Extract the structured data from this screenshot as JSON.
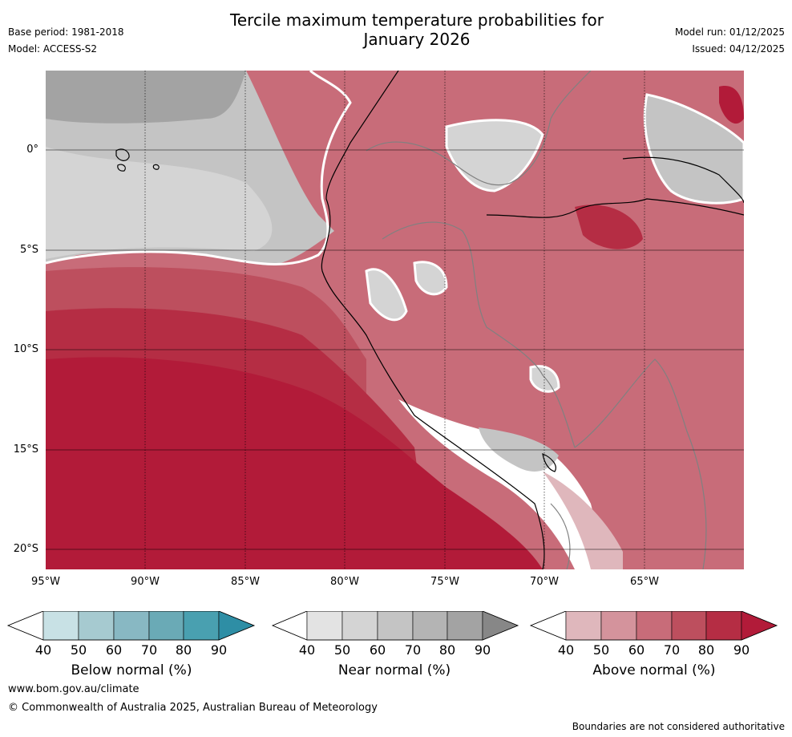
{
  "title": {
    "line1": "Tercile maximum temperature probabilities for",
    "line2": "January 2026"
  },
  "meta_left": {
    "base_period": "Base period: 1981-2018",
    "model": "Model: ACCESS-S2"
  },
  "meta_right": {
    "model_run": "Model run: 01/12/2025",
    "issued": "Issued: 04/12/2025"
  },
  "map": {
    "lat_ticks": [
      "0°",
      "5°S",
      "10°S",
      "15°S",
      "20°S"
    ],
    "lon_ticks": [
      "95°W",
      "90°W",
      "85°W",
      "80°W",
      "75°W",
      "70°W",
      "65°W"
    ]
  },
  "colorbars": [
    {
      "label": "Below normal (%)",
      "ticks": [
        "40",
        "50",
        "60",
        "70",
        "80",
        "90"
      ],
      "colors": [
        "#ffffff",
        "#c8e1e5",
        "#a6cad0",
        "#88b8c3",
        "#6aaab6",
        "#49a0b0",
        "#2e8ea5"
      ]
    },
    {
      "label": "Near normal (%)",
      "ticks": [
        "40",
        "50",
        "60",
        "70",
        "80",
        "90"
      ],
      "colors": [
        "#ffffff",
        "#e3e3e3",
        "#d4d4d4",
        "#c4c4c4",
        "#b4b4b4",
        "#a3a3a3",
        "#878787"
      ]
    },
    {
      "label": "Above normal (%)",
      "ticks": [
        "40",
        "50",
        "60",
        "70",
        "80",
        "90"
      ],
      "colors": [
        "#ffffff",
        "#dfb7bc",
        "#d4939c",
        "#c86c79",
        "#bd4f5e",
        "#b52d44",
        "#b21b39"
      ]
    }
  ],
  "footer": {
    "website": "www.bom.gov.au/climate",
    "copyright": "© Commonwealth of Australia 2025, Australian Bureau of Meteorology",
    "disclaimer": "Boundaries are not considered authoritative"
  }
}
